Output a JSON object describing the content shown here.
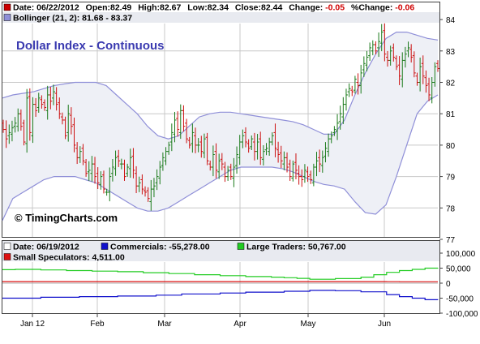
{
  "header": {
    "row1": [
      {
        "text": "Date: 06/22/2012",
        "color": "#000000"
      },
      {
        "text": "Open:82.49",
        "color": "#000000"
      },
      {
        "text": "High:82.67",
        "color": "#000000"
      },
      {
        "text": "Low:82.34",
        "color": "#000000"
      },
      {
        "text": "Close:82.44",
        "color": "#000000"
      },
      {
        "text": "Change:",
        "color": "#000000"
      },
      {
        "text": "-0.05",
        "color": "#d00000"
      },
      {
        "text": "%Change:",
        "color": "#000000"
      },
      {
        "text": "-0.06",
        "color": "#d00000"
      }
    ],
    "row1_swatch": "#cc0000",
    "row2": "Bollinger (21, 2): 81.68 - 83.37",
    "row2_swatch": "#8f8fd8"
  },
  "title": "Dollar Index - Continuous",
  "watermark": "© TimingCharts.com",
  "cot_header": {
    "date": "Date: 06/19/2012",
    "commercials": "Commercials: -55,278.00",
    "large": "Large Traders: 50,767.00",
    "small": "Small Speculators: 4,511.00"
  },
  "colors": {
    "up_bar": "#1a7a1a",
    "down_bar": "#cc1010",
    "band": "#8f8fd8",
    "band_fill": "#eef0f6",
    "commercials": "#1010cc",
    "large": "#22cc22",
    "small": "#dd1010",
    "title": "#3a3ab0",
    "grid": "#c8c8c8"
  },
  "chart_data": [
    {
      "type": "ohlc",
      "title": "Dollar Index - Continuous",
      "ylim": [
        77,
        84
      ],
      "yticks": [
        "77",
        "78",
        "79",
        "80",
        "81",
        "82",
        "83",
        "84"
      ],
      "xticks": [
        "Jan 12",
        "Feb",
        "Mar",
        "Apr",
        "May",
        "Jun"
      ],
      "grid": true,
      "series": [
        {
          "name": "Bollinger (21, 2)",
          "kind": "band",
          "upper": [
            81.5,
            81.6,
            81.65,
            81.7,
            81.8,
            81.9,
            81.95,
            82.0,
            82.0,
            82.0,
            81.9,
            81.6,
            81.3,
            81.0,
            80.6,
            80.3,
            80.2,
            80.3,
            80.6,
            80.9,
            81.0,
            81.05,
            81.05,
            81.0,
            80.95,
            80.9,
            80.85,
            80.8,
            80.75,
            80.65,
            80.5,
            80.35,
            80.35,
            80.8,
            81.6,
            82.3,
            82.9,
            83.4,
            83.6,
            83.6,
            83.5,
            83.4,
            83.35
          ],
          "lower": [
            77.6,
            78.3,
            78.5,
            78.7,
            78.9,
            79.0,
            79.0,
            79.0,
            78.9,
            78.8,
            78.6,
            78.4,
            78.2,
            78.0,
            77.9,
            77.9,
            78.0,
            78.2,
            78.4,
            78.6,
            78.8,
            79.0,
            79.2,
            79.3,
            79.3,
            79.3,
            79.3,
            79.25,
            79.15,
            79.0,
            78.85,
            78.75,
            78.7,
            78.6,
            78.2,
            77.85,
            77.8,
            78.1,
            79.0,
            80.0,
            81.0,
            81.4,
            81.6
          ]
        },
        {
          "name": "Price",
          "kind": "bars",
          "close": [
            80.5,
            80.2,
            80.4,
            80.55,
            80.7,
            81.0,
            80.6,
            80.1,
            81.5,
            80.4,
            81.3,
            81.1,
            81.5,
            81.3,
            81.2,
            81.6,
            81.4,
            81.7,
            81.3,
            81.0,
            80.8,
            80.3,
            81.0,
            80.6,
            80.0,
            79.6,
            79.8,
            79.5,
            79.1,
            79.2,
            79.4,
            79.0,
            78.8,
            79.0,
            78.6,
            78.5,
            79.0,
            79.3,
            79.6,
            79.5,
            79.4,
            79.0,
            79.3,
            79.6,
            79.2,
            78.7,
            78.8,
            78.6,
            78.5,
            78.3,
            78.6,
            78.7,
            79.0,
            79.3,
            79.6,
            79.8,
            80.0,
            80.4,
            80.8,
            80.5,
            81.1,
            80.6,
            80.2,
            80.0,
            80.4,
            80.0,
            80.0,
            79.8,
            80.2,
            79.5,
            79.3,
            79.7,
            79.2,
            79.5,
            79.4,
            79.0,
            79.2,
            79.0,
            79.3,
            79.7,
            80.1,
            80.3,
            80.1,
            79.9,
            80.2,
            79.8,
            80.1,
            79.6,
            79.8,
            79.9,
            80.1,
            80.3,
            79.9,
            79.7,
            79.5,
            79.6,
            79.3,
            79.0,
            79.4,
            79.2,
            79.0,
            78.9,
            79.2,
            79.0,
            78.9,
            79.3,
            79.5,
            79.4,
            79.6,
            79.9,
            80.2,
            80.3,
            80.5,
            80.7,
            81.0,
            81.3,
            81.6,
            81.8,
            81.7,
            82.1,
            81.9,
            82.3,
            82.6,
            82.8,
            83.1,
            83.2,
            83.0,
            83.3,
            83.6,
            82.9,
            82.7,
            83.0,
            82.8,
            82.5,
            82.2,
            82.7,
            82.9,
            83.1,
            82.8,
            82.3,
            82.0,
            82.5,
            82.2,
            81.9,
            81.6,
            82.0,
            82.5,
            82.44
          ]
        }
      ]
    },
    {
      "type": "line",
      "title": "",
      "ylim": [
        -100000,
        100000
      ],
      "yticks": [
        "100,000",
        "50,000",
        "0",
        "-50,000",
        "-100,000"
      ],
      "xticks": [
        "Jan 12",
        "Feb",
        "Mar",
        "Apr",
        "May",
        "Jun"
      ],
      "series": [
        {
          "name": "Commercials",
          "values": [
            -50000,
            -50000,
            -50000,
            -47000,
            -47000,
            -47000,
            -45000,
            -45000,
            -45000,
            -43000,
            -43000,
            -43000,
            -40000,
            -40000,
            -36000,
            -36000,
            -36000,
            -33000,
            -33000,
            -30000,
            -30000,
            -30000,
            -27000,
            -27000,
            -24000,
            -24000,
            -25000,
            -25000,
            -29000,
            -29000,
            -38000,
            -45000,
            -50000,
            -55000,
            -55278
          ]
        },
        {
          "name": "Large Traders",
          "values": [
            45000,
            46000,
            46000,
            44000,
            44000,
            42000,
            42000,
            40000,
            40000,
            38000,
            38000,
            35000,
            35000,
            32000,
            32000,
            28000,
            28000,
            25000,
            25000,
            22000,
            22000,
            20000,
            18000,
            16000,
            13000,
            13000,
            15000,
            15000,
            20000,
            28000,
            36000,
            42000,
            46000,
            50000,
            50767
          ]
        },
        {
          "name": "Small Speculators",
          "values": [
            5000,
            5000,
            5000,
            5000,
            5000,
            5000,
            5000,
            5000,
            5000,
            5000,
            5000,
            5000,
            5000,
            5000,
            5000,
            5000,
            5000,
            5000,
            5000,
            5000,
            5000,
            5000,
            5000,
            5000,
            5000,
            5000,
            5000,
            5000,
            5000,
            5000,
            4800,
            4700,
            4600,
            4500,
            4511
          ]
        }
      ]
    }
  ]
}
